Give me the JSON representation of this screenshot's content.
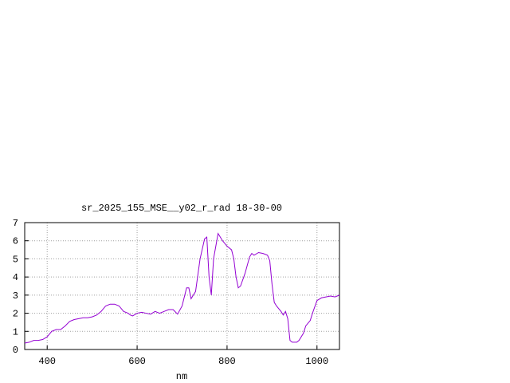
{
  "chart_data": {
    "type": "line",
    "title": "sr_2025_155_MSE__y02_r_rad 18-30-00",
    "x_label": "nm",
    "xlim": [
      350,
      1050
    ],
    "xticks": [
      400,
      600,
      800,
      1000
    ],
    "ylim": [
      0,
      7
    ],
    "yticks": [
      0,
      1,
      2,
      3,
      4,
      5,
      6,
      7
    ],
    "grid": true,
    "series": [
      {
        "color": "#9400d3",
        "x": [
          350,
          360,
          370,
          380,
          390,
          400,
          410,
          420,
          430,
          440,
          450,
          460,
          470,
          480,
          490,
          500,
          510,
          520,
          530,
          540,
          550,
          560,
          570,
          580,
          585,
          590,
          600,
          610,
          620,
          630,
          640,
          650,
          660,
          670,
          680,
          690,
          700,
          710,
          715,
          720,
          730,
          740,
          750,
          755,
          760,
          765,
          770,
          780,
          790,
          800,
          810,
          815,
          820,
          825,
          830,
          840,
          850,
          855,
          860,
          870,
          880,
          890,
          895,
          900,
          905,
          910,
          920,
          925,
          930,
          935,
          940,
          945,
          955,
          960,
          970,
          975,
          985,
          990,
          1000,
          1010,
          1020,
          1030,
          1040,
          1050
        ],
        "values": [
          0.35,
          0.4,
          0.5,
          0.5,
          0.55,
          0.7,
          1.0,
          1.1,
          1.1,
          1.3,
          1.55,
          1.65,
          1.7,
          1.75,
          1.75,
          1.8,
          1.9,
          2.1,
          2.4,
          2.5,
          2.5,
          2.4,
          2.1,
          2.0,
          1.9,
          1.85,
          2.0,
          2.05,
          2.0,
          1.95,
          2.1,
          2.0,
          2.1,
          2.2,
          2.2,
          1.95,
          2.4,
          3.4,
          3.4,
          2.8,
          3.2,
          5.0,
          6.1,
          6.2,
          4.0,
          3.0,
          5.0,
          6.4,
          6.0,
          5.7,
          5.5,
          5.0,
          4.0,
          3.4,
          3.5,
          4.2,
          5.1,
          5.3,
          5.2,
          5.35,
          5.3,
          5.2,
          4.9,
          3.6,
          2.6,
          2.4,
          2.1,
          1.9,
          2.1,
          1.7,
          0.5,
          0.4,
          0.4,
          0.5,
          0.9,
          1.3,
          1.6,
          2.0,
          2.7,
          2.85,
          2.9,
          2.95,
          2.9,
          3.0
        ]
      }
    ]
  }
}
